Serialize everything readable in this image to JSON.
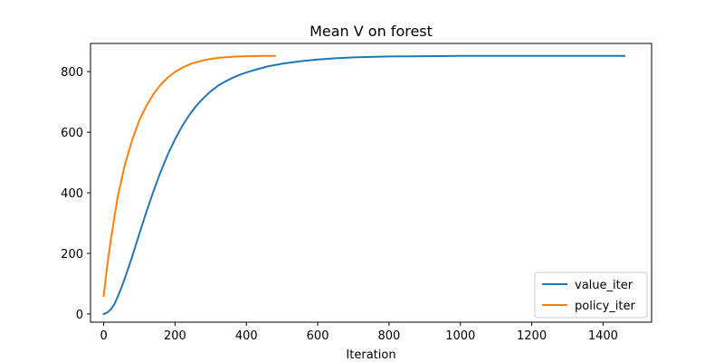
{
  "chart_data": {
    "type": "line",
    "title": "Mean V on forest",
    "xlabel": "Iteration",
    "ylabel": "",
    "xlim": [
      -37,
      1536
    ],
    "ylim": [
      -27,
      893
    ],
    "xticks": [
      0,
      200,
      400,
      600,
      800,
      1000,
      1200,
      1400
    ],
    "yticks": [
      0,
      200,
      400,
      600,
      800
    ],
    "grid": false,
    "legend_position": "lower-right",
    "series": [
      {
        "name": "value_iter",
        "color": "#1f77b4",
        "x": [
          0,
          10,
          20,
          30,
          40,
          50,
          60,
          80,
          100,
          120,
          140,
          160,
          180,
          200,
          220,
          240,
          260,
          280,
          300,
          320,
          340,
          360,
          380,
          400,
          430,
          460,
          500,
          550,
          600,
          650,
          700,
          800,
          900,
          1000,
          1200,
          1400,
          1460
        ],
        "y": [
          0,
          5,
          15,
          32,
          58,
          88,
          120,
          190,
          265,
          338,
          407,
          470,
          527,
          577,
          620,
          657,
          688,
          713,
          735,
          753,
          767,
          779,
          789,
          797,
          808,
          817,
          826,
          834,
          840,
          844,
          847,
          850,
          851,
          852,
          852,
          852,
          852
        ]
      },
      {
        "name": "policy_iter",
        "color": "#ff7f0e",
        "x": [
          0,
          10,
          20,
          30,
          40,
          60,
          80,
          100,
          120,
          140,
          160,
          180,
          200,
          225,
          250,
          275,
          300,
          325,
          350,
          375,
          400,
          440,
          480
        ],
        "y": [
          60,
          160,
          245,
          320,
          390,
          495,
          575,
          640,
          688,
          727,
          757,
          781,
          799,
          816,
          828,
          836,
          842,
          846,
          848,
          850,
          851,
          852,
          852
        ]
      }
    ]
  }
}
